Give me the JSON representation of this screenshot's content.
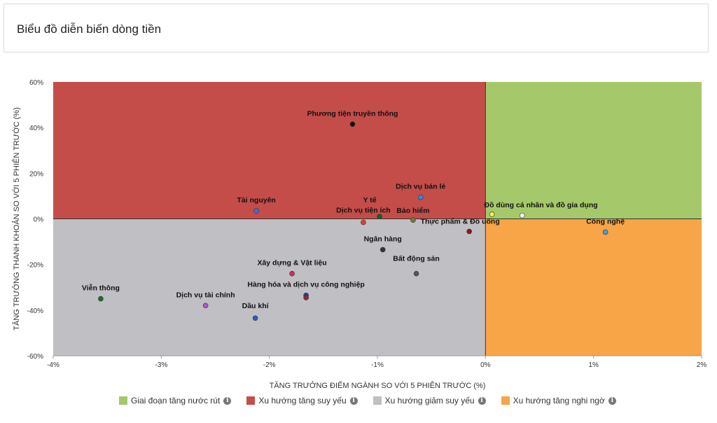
{
  "header": {
    "title": "Biểu đồ diễn biến dòng tiền"
  },
  "colors": {
    "q_green": "#a5c96a",
    "q_red": "#c44d4a",
    "q_gray": "#c0c0c4",
    "q_orange": "#f7a547"
  },
  "chart_data": {
    "type": "scatter",
    "xlabel": "TĂNG TRƯỞNG ĐIỂM NGÀNH SO VỚI 5 PHIÊN TRƯỚC (%)",
    "ylabel": "TĂNG TRƯỞNG THANH KHOẢN SO VỚI 5 PHIÊN TRƯỚC (%)",
    "xlim": [
      -4,
      2
    ],
    "ylim": [
      -60,
      60
    ],
    "xticks": [
      "-4%",
      "-3%",
      "-2%",
      "-1%",
      "0%",
      "1%",
      "2%"
    ],
    "yticks": [
      "60%",
      "40%",
      "20%",
      "0%",
      "-20%",
      "-40%",
      "-60%"
    ],
    "points": [
      {
        "label": "Phương tiện truyền thông",
        "x": -1.23,
        "y": 41.5,
        "color": "#111111"
      },
      {
        "label": "Dịch vụ bán lẻ",
        "x": -0.6,
        "y": 9.5,
        "color": "#2a8fd8"
      },
      {
        "label": "Tài nguyên",
        "x": -2.12,
        "y": 3.5,
        "color": "#3d6fd6"
      },
      {
        "label": "Y tế",
        "x": -0.98,
        "y": 1.0,
        "color": "#1a5c2a"
      },
      {
        "label": "Dịch vụ tiện ích",
        "x": -1.13,
        "y": -1.5,
        "color": "#e0402c"
      },
      {
        "label": "Bảo hiểm",
        "x": -0.67,
        "y": -0.5,
        "color": "#6b7d3a"
      },
      {
        "label": "Đồ dùng cá nhân và đồ gia dụng",
        "x": 0.06,
        "y": 2.0,
        "color": "#f0f04a"
      },
      {
        "label": "",
        "x": 0.34,
        "y": 1.5,
        "color": "#f2f2f2"
      },
      {
        "label": "Thực phẩm & Đồ uống",
        "x": -0.15,
        "y": -5.5,
        "color": "#8a1a1a"
      },
      {
        "label": "Công nghệ",
        "x": 1.11,
        "y": -5.8,
        "color": "#3aa0e8"
      },
      {
        "label": "Ngân hàng",
        "x": -0.95,
        "y": -13.5,
        "color": "#333333"
      },
      {
        "label": "Bất động sản",
        "x": -0.64,
        "y": -24.0,
        "color": "#555555"
      },
      {
        "label": "Xây dựng & Vật liệu",
        "x": -1.79,
        "y": -24.0,
        "color": "#d62a5c"
      },
      {
        "label": "Hàng hóa và dịch vụ công nghiệp",
        "x": -1.66,
        "y": -33.5,
        "color": "#2a3f8f"
      },
      {
        "label": "",
        "x": -1.66,
        "y": -34.5,
        "color": "#8a2a3a"
      },
      {
        "label": "Viễn thông",
        "x": -3.56,
        "y": -35.0,
        "color": "#1f6b2a"
      },
      {
        "label": "Dịch vụ tài chính",
        "x": -2.59,
        "y": -38.0,
        "color": "#b055d8"
      },
      {
        "label": "Dầu khí",
        "x": -2.13,
        "y": -43.5,
        "color": "#2a5cb8"
      }
    ]
  },
  "legend": {
    "items": [
      {
        "label": "Giai đoạn tăng nước rút",
        "color": "#a5c96a"
      },
      {
        "label": "Xu hướng tăng suy yếu",
        "color": "#c44d4a"
      },
      {
        "label": "Xu hướng giảm suy yếu",
        "color": "#c0c0c4"
      },
      {
        "label": "Xu hướng tăng nghi ngờ",
        "color": "#f7a547"
      }
    ],
    "info_glyph": "i"
  }
}
